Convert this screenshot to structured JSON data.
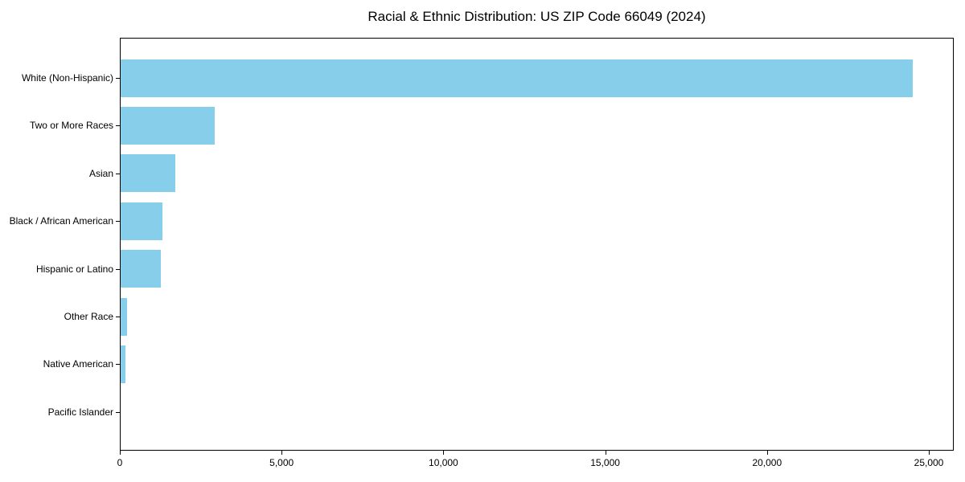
{
  "chart_data": {
    "type": "bar",
    "orientation": "horizontal",
    "title": "Racial & Ethnic Distribution: US ZIP Code 66049 (2024)",
    "categories": [
      "White (Non-Hispanic)",
      "Two or More Races",
      "Asian",
      "Black / African American",
      "Hispanic or Latino",
      "Other Race",
      "Native American",
      "Pacific Islander"
    ],
    "values": [
      24500,
      2900,
      1700,
      1300,
      1250,
      200,
      150,
      0
    ],
    "xlabel": "",
    "ylabel": "",
    "xlim": [
      0,
      25770
    ],
    "xticks": [
      0,
      5000,
      10000,
      15000,
      20000,
      25000
    ],
    "xtick_labels": [
      "0",
      "5,000",
      "10,000",
      "15,000",
      "20,000",
      "25,000"
    ],
    "bar_color": "#87CEEB",
    "background_color": "#ffffff",
    "text_color": "#000000",
    "grid": false,
    "legend": "none"
  }
}
